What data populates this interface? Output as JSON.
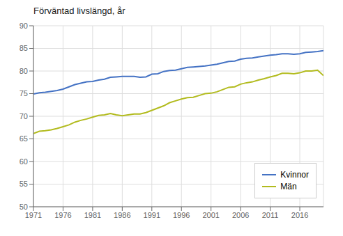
{
  "chart_data": {
    "type": "line",
    "title": "Förväntad livslängd, år",
    "x": [
      1971,
      1972,
      1973,
      1974,
      1975,
      1976,
      1977,
      1978,
      1979,
      1980,
      1981,
      1982,
      1983,
      1984,
      1985,
      1986,
      1987,
      1988,
      1989,
      1990,
      1991,
      1992,
      1993,
      1994,
      1995,
      1996,
      1997,
      1998,
      1999,
      2000,
      2001,
      2002,
      2003,
      2004,
      2005,
      2006,
      2007,
      2008,
      2009,
      2010,
      2011,
      2012,
      2013,
      2014,
      2015,
      2016,
      2017,
      2018,
      2019,
      2020
    ],
    "series": [
      {
        "name": "Kvinnor",
        "color": "#4472c4",
        "values": [
          74.9,
          75.2,
          75.3,
          75.5,
          75.7,
          76.0,
          76.5,
          77.0,
          77.3,
          77.6,
          77.7,
          78.0,
          78.2,
          78.6,
          78.7,
          78.8,
          78.8,
          78.8,
          78.6,
          78.7,
          79.3,
          79.4,
          79.9,
          80.1,
          80.2,
          80.5,
          80.8,
          80.9,
          81.0,
          81.1,
          81.3,
          81.5,
          81.8,
          82.1,
          82.2,
          82.6,
          82.8,
          82.9,
          83.1,
          83.3,
          83.5,
          83.6,
          83.8,
          83.8,
          83.7,
          83.8,
          84.1,
          84.2,
          84.3,
          84.5
        ]
      },
      {
        "name": "Män",
        "color": "#b2bb1e",
        "values": [
          66.2,
          66.7,
          66.8,
          67.0,
          67.3,
          67.7,
          68.1,
          68.7,
          69.1,
          69.4,
          69.8,
          70.2,
          70.3,
          70.6,
          70.3,
          70.1,
          70.3,
          70.5,
          70.5,
          70.8,
          71.3,
          71.8,
          72.3,
          73.0,
          73.4,
          73.8,
          74.1,
          74.2,
          74.6,
          75.0,
          75.1,
          75.4,
          75.9,
          76.4,
          76.5,
          77.1,
          77.4,
          77.6,
          78.0,
          78.3,
          78.7,
          79.0,
          79.5,
          79.5,
          79.4,
          79.6,
          80.0,
          80.0,
          80.2,
          79.0
        ]
      }
    ],
    "xlim": [
      1971,
      2020
    ],
    "xticks": [
      1971,
      1976,
      1981,
      1986,
      1991,
      1996,
      2001,
      2006,
      2011,
      2016
    ],
    "ylim": [
      50,
      90
    ],
    "yticks": [
      50,
      55,
      60,
      65,
      70,
      75,
      80,
      85,
      90
    ],
    "grid": true,
    "legend": "lower right"
  }
}
